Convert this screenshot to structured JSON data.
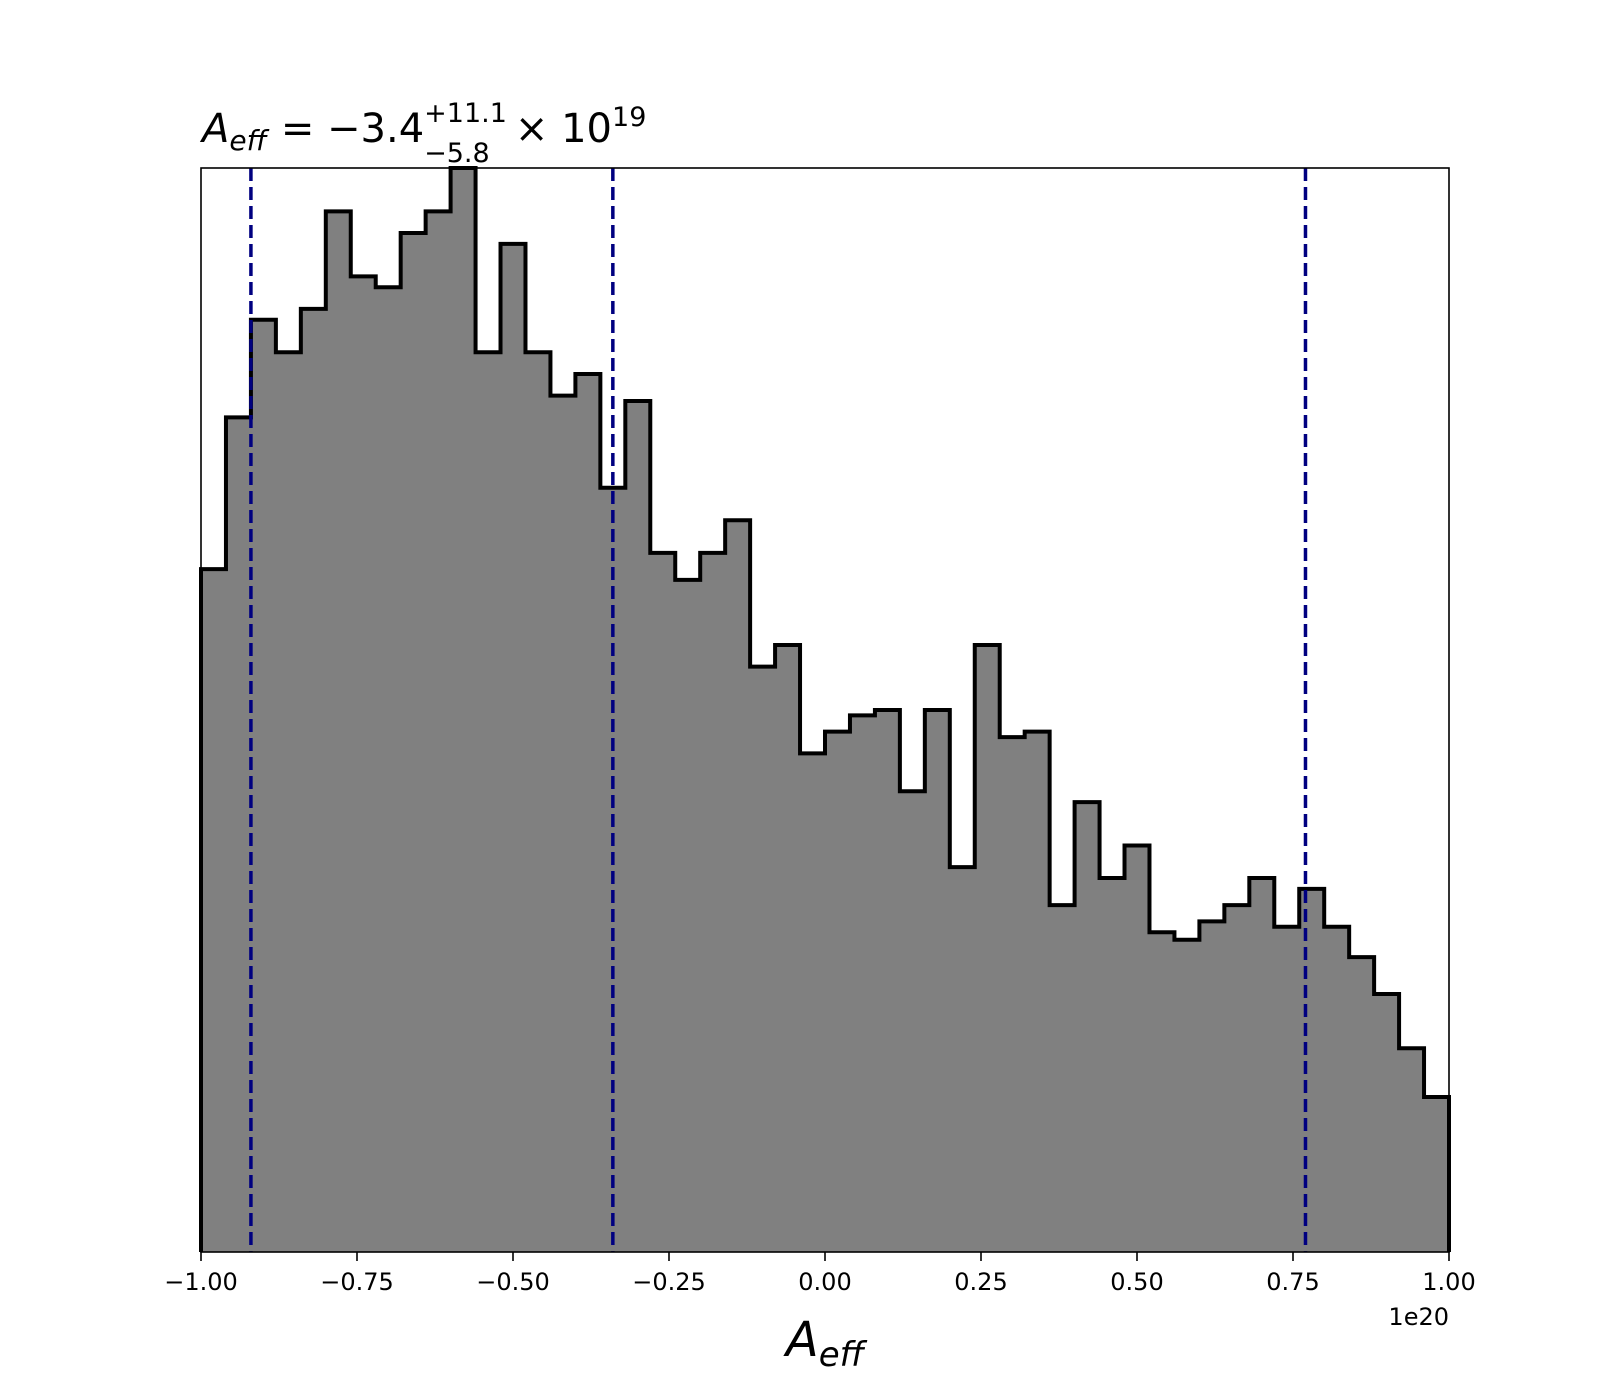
{
  "chart_data": {
    "type": "bar",
    "title": {
      "symbol": "A",
      "symbol_sub": "eff",
      "equals_value": "= −3.4",
      "upper": "+11.1",
      "lower": "−5.8",
      "times_base": "× 10",
      "exponent": "19"
    },
    "xlabel": {
      "symbol": "A",
      "sub": "eff"
    },
    "x_offset_label": "1e20",
    "xlim": [
      -1.0,
      1.0
    ],
    "xticks": [
      -1.0,
      -0.75,
      -0.5,
      -0.25,
      0.0,
      0.25,
      0.5,
      0.75,
      1.0
    ],
    "xtick_labels": [
      "−1.00",
      "−0.75",
      "−0.50",
      "−0.25",
      "0.00",
      "0.25",
      "0.50",
      "0.75",
      "1.00"
    ],
    "y_max": 1.0,
    "bin_edges": [
      -1.0,
      -0.96,
      -0.92,
      -0.88,
      -0.84,
      -0.8,
      -0.76,
      -0.72,
      -0.68,
      -0.64,
      -0.6,
      -0.56,
      -0.52,
      -0.48,
      -0.44,
      -0.4,
      -0.36,
      -0.32,
      -0.28,
      -0.24,
      -0.2,
      -0.16,
      -0.12,
      -0.08,
      -0.04,
      0.0,
      0.04,
      0.08,
      0.12,
      0.16,
      0.2,
      0.24,
      0.28,
      0.32,
      0.36,
      0.4,
      0.44,
      0.48,
      0.52,
      0.56,
      0.6,
      0.64,
      0.68,
      0.72,
      0.76,
      0.8,
      0.84,
      0.88,
      0.92,
      0.96,
      1.0
    ],
    "values": [
      0.63,
      0.77,
      0.86,
      0.83,
      0.87,
      0.96,
      0.9,
      0.89,
      0.94,
      0.96,
      1.0,
      0.83,
      0.93,
      0.83,
      0.79,
      0.81,
      0.705,
      0.785,
      0.645,
      0.62,
      0.645,
      0.675,
      0.54,
      0.56,
      0.46,
      0.48,
      0.495,
      0.5,
      0.425,
      0.5,
      0.355,
      0.56,
      0.475,
      0.48,
      0.32,
      0.415,
      0.345,
      0.375,
      0.295,
      0.288,
      0.305,
      0.32,
      0.345,
      0.3,
      0.335,
      0.3,
      0.272,
      0.238,
      0.188,
      0.143
    ],
    "fill_color": "#808080",
    "edge_color": "#000000",
    "vlines": [
      -0.92,
      -0.34,
      0.77
    ],
    "vline_color": "#000080",
    "vline_style": "dashed",
    "grid": false,
    "yticks_shown": false
  }
}
